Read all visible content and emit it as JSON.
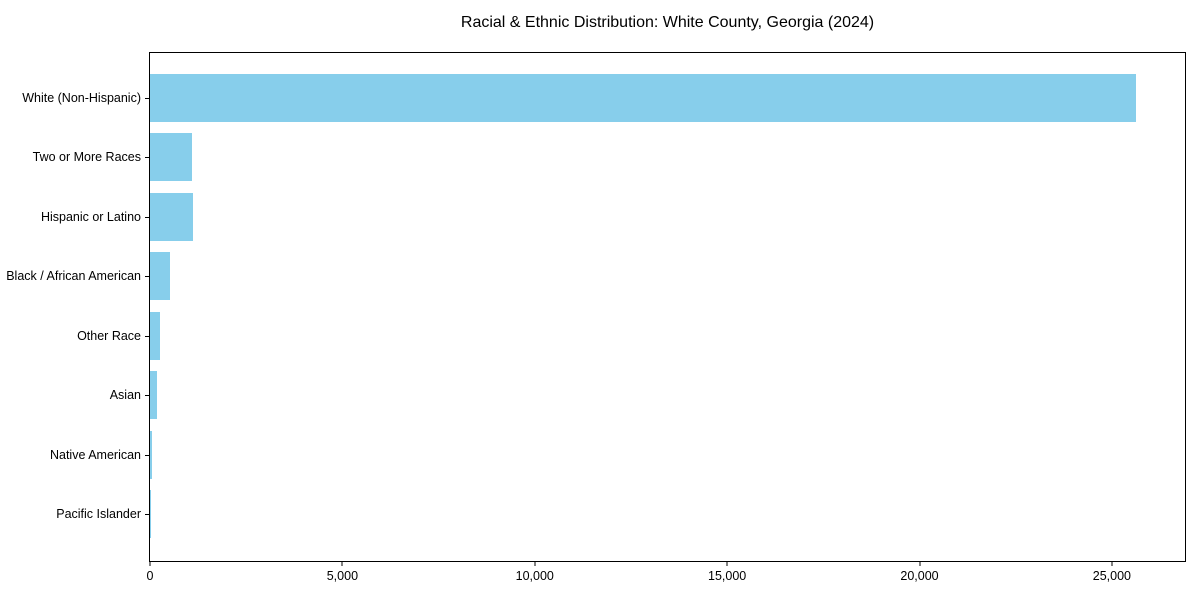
{
  "title": "Racial & Ethnic Distribution: White County, Georgia (2024)",
  "chart_data": {
    "type": "bar",
    "orientation": "horizontal",
    "title": "Racial & Ethnic Distribution: White County, Georgia (2024)",
    "xlabel": "",
    "ylabel": "",
    "categories": [
      "White (Non-Hispanic)",
      "Two or More Races",
      "Hispanic or Latino",
      "Black / African American",
      "Other Race",
      "Asian",
      "Native American",
      "Pacific Islander"
    ],
    "values": [
      25620,
      1080,
      1130,
      530,
      270,
      175,
      40,
      15
    ],
    "xlim": [
      0,
      26900
    ],
    "x_ticks": [
      0,
      5000,
      10000,
      15000,
      20000,
      25000
    ],
    "x_tick_labels": [
      "0",
      "5,000",
      "10,000",
      "15,000",
      "20,000",
      "25,000"
    ],
    "bar_color": "#87ceeb",
    "grid": false,
    "legend": false
  }
}
